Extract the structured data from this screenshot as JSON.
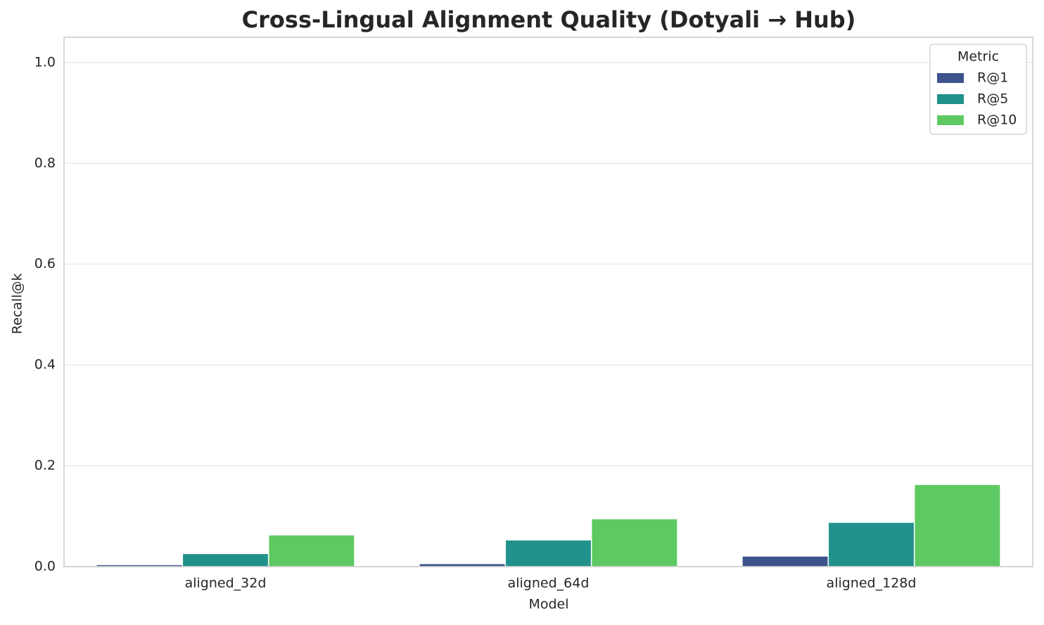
{
  "chart_data": {
    "type": "bar",
    "title": "Cross-Lingual Alignment Quality (Dotyali → Hub)",
    "x_label": "Model",
    "y_label": "Recall@k",
    "categories": [
      "aligned_32d",
      "aligned_64d",
      "aligned_128d"
    ],
    "series": [
      {
        "name": "R@1",
        "color": "#3b528b",
        "values": [
          0.004,
          0.006,
          0.021
        ]
      },
      {
        "name": "R@5",
        "color": "#21918c",
        "values": [
          0.026,
          0.053,
          0.088
        ]
      },
      {
        "name": "R@10",
        "color": "#5ec962",
        "values": [
          0.063,
          0.095,
          0.163
        ]
      }
    ],
    "legend_title": "Metric",
    "legend": "upper right",
    "ylim": [
      0,
      1.05
    ],
    "yticks": [
      {
        "value": 0,
        "label": "0.0"
      },
      0.2,
      0.4,
      0.6,
      0.8,
      {
        "value": 1,
        "label": "1.0"
      }
    ],
    "grid": true
  }
}
